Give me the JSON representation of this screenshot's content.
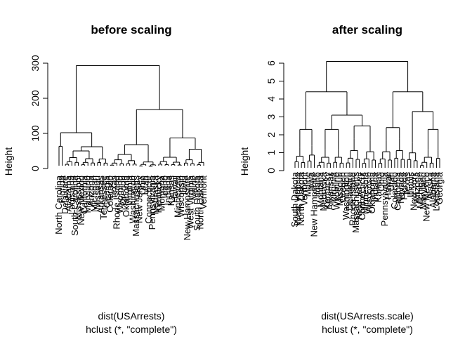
{
  "chart_data": [
    {
      "type": "dendrogram",
      "title": "before scaling",
      "ylabel": "Height",
      "xlabel": "dist(USArrests)",
      "sub": "hclust (*, \"complete\")",
      "ylim": [
        0,
        300
      ],
      "yticks": [
        0,
        100,
        200,
        300
      ],
      "leaf_labels": [
        "North Carolina",
        "Florida",
        "Delaware",
        "Alabama",
        "Louisiana",
        "South Carolina",
        "Mississippi",
        "New Mexico",
        "California",
        "Maryland",
        "Arizona",
        "Michigan",
        "Missouri",
        "Arkansas",
        "Tennessee",
        "Georgia",
        "Colorado",
        "Texas",
        "Rhode Island",
        "Wyoming",
        "Oregon",
        "Oklahoma",
        "Virginia",
        "Washington",
        "Massachusetts",
        "New Jersey",
        "Ohio",
        "Utah",
        "Connecticut",
        "Pennsylvania",
        "Nebraska",
        "Kentucky",
        "Montana",
        "Idaho",
        "Indiana",
        "Kansas",
        "Hawaii",
        "Minnesota",
        "Wisconsin",
        "Iowa",
        "New Hampshire",
        "West Virginia",
        "Maine",
        "South Dakota",
        "North Dakota",
        "Vermont"
      ],
      "merge_heights": {
        "root": 293,
        "left_cluster": 102,
        "right_cluster": 168,
        "right_sub_b": 87
      }
    },
    {
      "type": "dendrogram",
      "title": "after scaling",
      "ylabel": "Height",
      "xlabel": "dist(USArrests.scale)",
      "sub": "hclust (*, \"complete\")",
      "ylim": [
        0,
        6
      ],
      "yticks": [
        0,
        1,
        2,
        3,
        4,
        5,
        6
      ],
      "leaf_labels": [
        "South Dakota",
        "West Virginia",
        "North Dakota",
        "Vermont",
        "Maine",
        "Iowa",
        "New Hampshire",
        "Idaho",
        "Montana",
        "Nebraska",
        "Kentucky",
        "Arkansas",
        "Virginia",
        "Wyoming",
        "Missouri",
        "Oregon",
        "Washington",
        "Delaware",
        "Rhode Island",
        "Massachusetts",
        "New Jersey",
        "Connecticut",
        "Minnesota",
        "Wisconsin",
        "Oklahoma",
        "Indiana",
        "Kansas",
        "Ohio",
        "Pennsylvania",
        "Hawaii",
        "Utah",
        "Colorado",
        "California",
        "Nevada",
        "Florida",
        "Texas",
        "Illinois",
        "New York",
        "Arizona",
        "Michigan",
        "Maryland",
        "New Mexico",
        "Alaska",
        "Alabama",
        "Louisiana",
        "Georgia",
        "Tennessee",
        "North Carolina",
        "Mississippi",
        "South Carolina"
      ],
      "merge_heights": {
        "root": 6.1,
        "left_cluster": 4.4,
        "right_cluster": 4.4,
        "alaska_group": 3.3
      }
    }
  ]
}
